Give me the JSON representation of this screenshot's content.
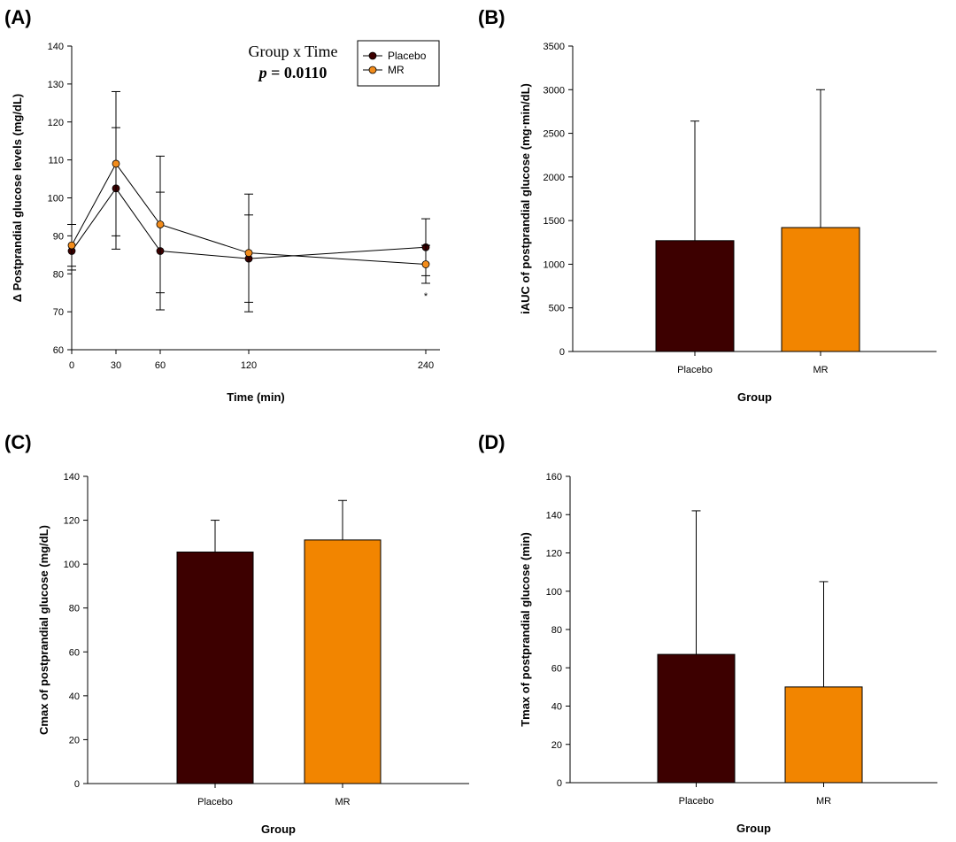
{
  "chart_data": [
    {
      "panel": "(A)",
      "type": "line",
      "xlabel": "Time (min)",
      "ylabel": "Δ Postprandial glucose levels (mg/dL)",
      "x": [
        0,
        30,
        60,
        120,
        240
      ],
      "xticks": [
        "0",
        "30",
        "60",
        "120",
        "240"
      ],
      "xlim": [
        0,
        240
      ],
      "ylim": [
        60,
        140
      ],
      "yticks": [
        60,
        70,
        80,
        90,
        100,
        110,
        120,
        130,
        140
      ],
      "annotation": {
        "title": "Group x Time",
        "p_label": "p",
        "p_value": "= 0.0110"
      },
      "significance": {
        "x": 240,
        "label": "*"
      },
      "legend": "top-right",
      "series": [
        {
          "name": "Placebo",
          "color": "#3d0000",
          "values": [
            86,
            102.5,
            86,
            84,
            87
          ],
          "err_up": [
            7,
            16,
            15.5,
            11.5,
            7.5
          ],
          "err_down": [
            5,
            16,
            15.5,
            11.5,
            7.5
          ]
        },
        {
          "name": "MR",
          "color": "#f28c1c",
          "values": [
            87.5,
            109,
            93,
            85.5,
            82.5
          ],
          "err_up": [
            5.5,
            19,
            18,
            15.5,
            5
          ],
          "err_down": [
            5.5,
            19,
            18,
            15.5,
            5
          ]
        }
      ]
    },
    {
      "panel": "(B)",
      "type": "bar",
      "xlabel": "Group",
      "ylabel": "iAUC of postprandial glucose (mg·min/dL)",
      "categories": [
        "Placebo",
        "MR"
      ],
      "values": [
        1270,
        1420
      ],
      "err_up": [
        1370,
        1580
      ],
      "colors": [
        "#3d0000",
        "#f28500"
      ],
      "ylim": [
        0,
        3500
      ],
      "yticks": [
        0,
        500,
        1000,
        1500,
        2000,
        2500,
        3000,
        3500
      ]
    },
    {
      "panel": "(C)",
      "type": "bar",
      "xlabel": "Group",
      "ylabel": "Cmax of postprandial glucose (mg/dL)",
      "categories": [
        "Placebo",
        "MR"
      ],
      "values": [
        105.5,
        111
      ],
      "err_up": [
        14.5,
        18
      ],
      "colors": [
        "#3d0000",
        "#f28500"
      ],
      "ylim": [
        0,
        140
      ],
      "yticks": [
        0,
        20,
        40,
        60,
        80,
        100,
        120,
        140
      ]
    },
    {
      "panel": "(D)",
      "type": "bar",
      "xlabel": "Group",
      "ylabel": "Tmax of postprandial glucose (min)",
      "categories": [
        "Placebo",
        "MR"
      ],
      "values": [
        67,
        50
      ],
      "err_up": [
        75,
        55
      ],
      "colors": [
        "#3d0000",
        "#f28500"
      ],
      "ylim": [
        0,
        160
      ],
      "yticks": [
        0,
        20,
        40,
        60,
        80,
        100,
        120,
        140,
        160
      ]
    }
  ]
}
